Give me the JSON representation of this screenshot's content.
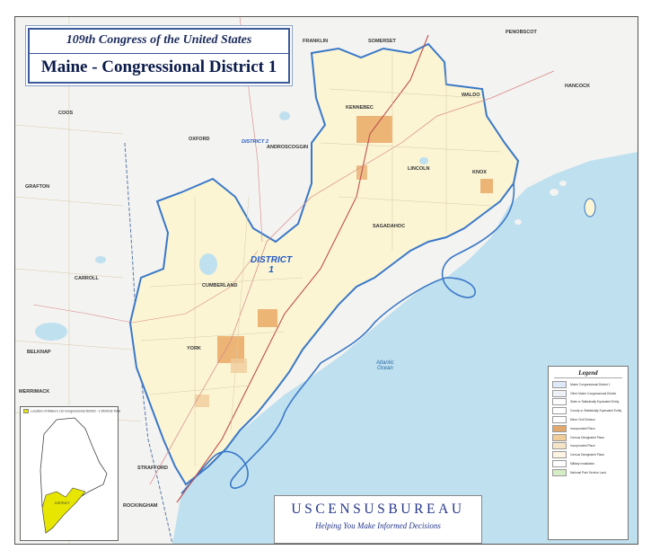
{
  "title": {
    "line1": "109th Congress of the United States",
    "line2": "Maine - Congressional District 1"
  },
  "district_label": {
    "line1": "DISTRICT",
    "line2": "1"
  },
  "ocean_label": {
    "line1": "Atlantic",
    "line2": "Ocean"
  },
  "county_labels": {
    "franklin": "FRANKLIN",
    "somerset": "SOMERSET",
    "penobscot": "PENOBSCOT",
    "hancock": "HANCOCK",
    "waldo": "WALDO",
    "kennebec": "KENNEBEC",
    "coos": "COOS",
    "oxford": "OXFORD",
    "androscoggin": "ANDROSCOGGIN",
    "lincoln": "LINCOLN",
    "knox": "KNOX",
    "grafton": "GRAFTON",
    "sagadahoc": "SAGADAHOC",
    "cumberland": "CUMBERLAND",
    "carroll": "CARROLL",
    "york": "YORK",
    "belknap": "BELKNAP",
    "merrimack": "MERRIMACK",
    "strafford": "STRAFFORD",
    "rockingham": "ROCKINGHAM",
    "district_2": "DISTRICT 2"
  },
  "inset": {
    "caption": "Location of Maine's 1st Congressional District - 2 Districts Total",
    "district_label": "DISTRICT"
  },
  "legend": {
    "title": "Legend",
    "items": [
      {
        "text": "Maine Congressional District 1",
        "color": "#dfe8f6"
      },
      {
        "text": "Other Maine Congressional District",
        "color": "#eef2f8"
      },
      {
        "text": "State or Statistically Equivalent Entity",
        "color": "#ffffff"
      },
      {
        "text": "County or Statistically Equivalent Entity",
        "color": "#ffffff"
      },
      {
        "text": "Minor Civil Division",
        "color": "#ffffff"
      },
      {
        "text": "Incorporated Place",
        "color": "#e2a86c"
      },
      {
        "text": "Census Designated Place",
        "color": "#f0cc9a"
      },
      {
        "text": "Incorporated Place",
        "color": "#f6e4c6"
      },
      {
        "text": "Census Designated Place",
        "color": "#fdf3e2"
      },
      {
        "text": "Military Installation",
        "color": "#ffffff"
      },
      {
        "text": "National Park Service Land",
        "color": "#d6ecc4"
      }
    ]
  },
  "agency": {
    "name": "USCENSUSBUREAU",
    "tagline": "Helping You Make Informed Decisions"
  },
  "colors": {
    "water": "#bfe0ef",
    "district_fill": "#fbf5d4",
    "outside_fill": "#f3f3f1",
    "district_border": "#3a78c8",
    "accent": "#24368a"
  }
}
